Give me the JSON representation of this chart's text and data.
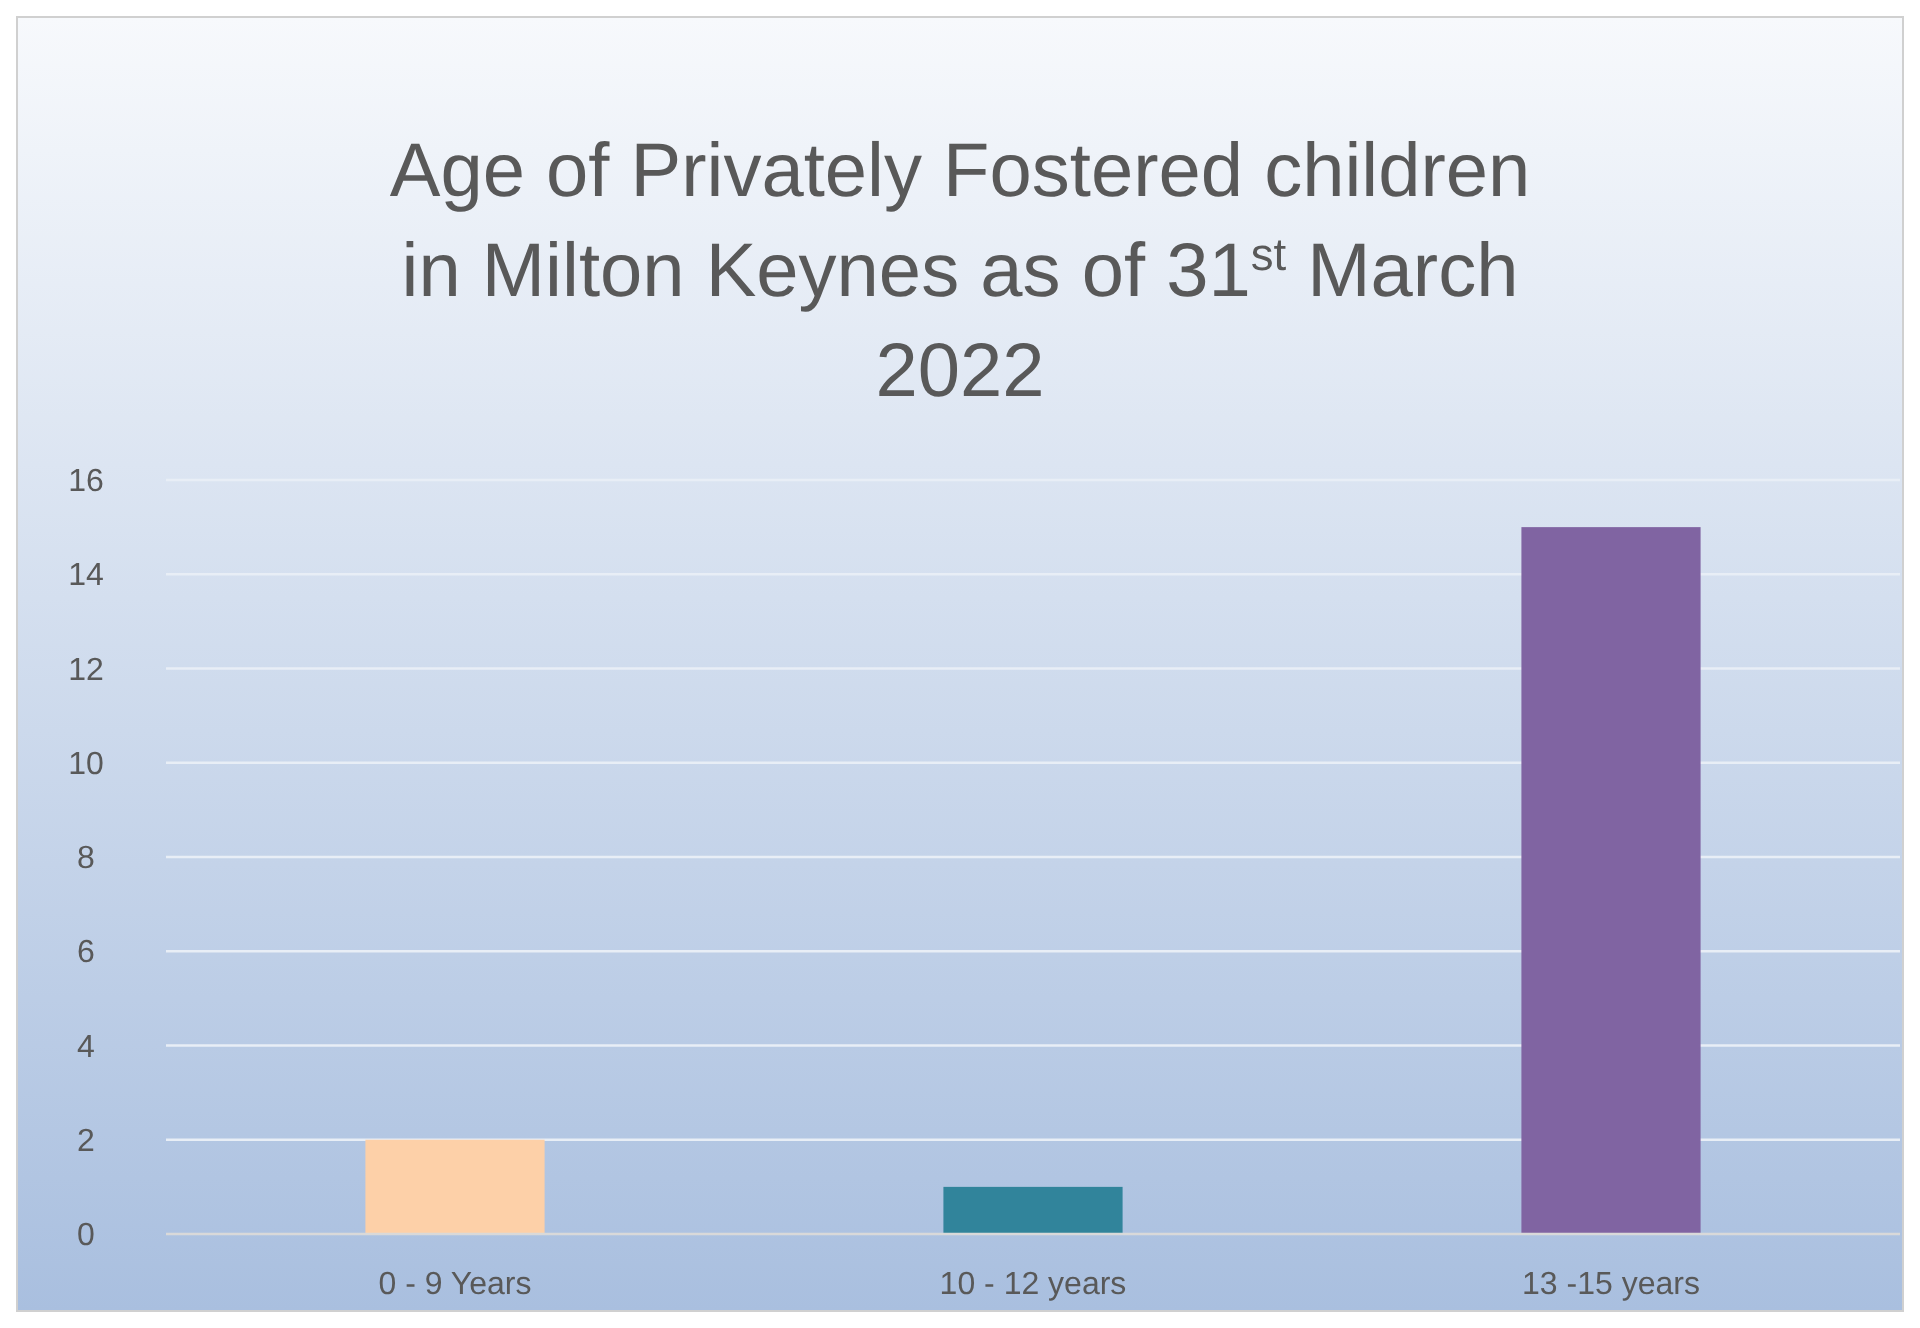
{
  "chart_data": {
    "type": "bar",
    "title": "Age of Privately Fostered children in Milton Keynes as of 31$^{st}$ March 2022",
    "categories": [
      "0 - 9 Years",
      "10 - 12 years",
      "13 -15 years"
    ],
    "values": [
      2,
      1,
      15
    ],
    "colors": [
      "#fdd0a8",
      "#31849b",
      "#8064a2"
    ],
    "ylim": [
      0,
      16
    ],
    "yticks": [
      0,
      2,
      4,
      6,
      8,
      10,
      12,
      14,
      16
    ],
    "grid": "y"
  }
}
